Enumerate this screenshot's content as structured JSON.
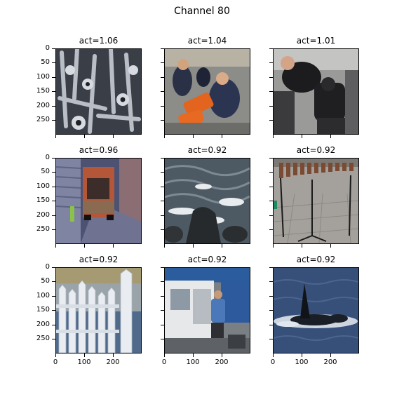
{
  "figure": {
    "title": "Channel 80",
    "y_tick_labels": [
      "0",
      "50",
      "100",
      "150",
      "200",
      "250"
    ],
    "x_tick_labels": [
      "0",
      "100",
      "200"
    ]
  },
  "panels": [
    {
      "title": "act=1.06",
      "subject": "bolts"
    },
    {
      "title": "act=1.04",
      "subject": "sailors-stretcher"
    },
    {
      "title": "act=1.01",
      "subject": "leather-people"
    },
    {
      "title": "act=0.96",
      "subject": "garbage-truck"
    },
    {
      "title": "act=0.92",
      "subject": "river-rocks"
    },
    {
      "title": "act=0.92",
      "subject": "marimba"
    },
    {
      "title": "act=0.92",
      "subject": "picket-fence"
    },
    {
      "title": "act=0.92",
      "subject": "food-truck"
    },
    {
      "title": "act=0.92",
      "subject": "orca"
    }
  ]
}
